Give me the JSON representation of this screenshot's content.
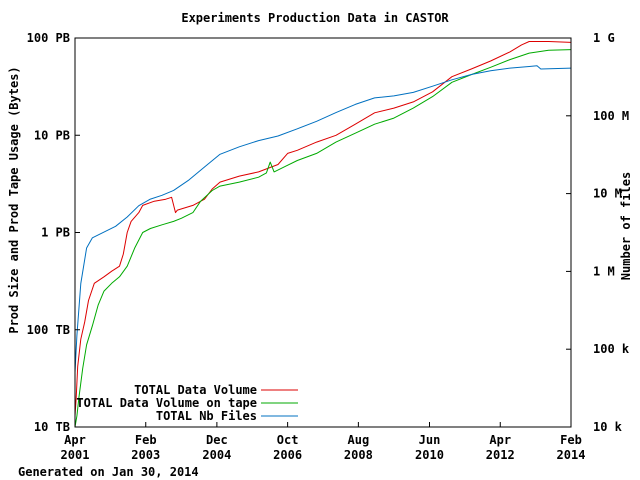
{
  "chart_data": {
    "type": "line",
    "title": "Experiments Production Data in CASTOR",
    "ylabel_left": "Prod Size and Prod Tape Usage (Bytes)",
    "ylabel_right": "Number of files",
    "footer": "Generated on Jan 30, 2014",
    "x_ticks": [
      {
        "x": 2001.25,
        "line1": "Apr",
        "line2": "2001"
      },
      {
        "x": 2003.08,
        "line1": "Feb",
        "line2": "2003"
      },
      {
        "x": 2004.92,
        "line1": "Dec",
        "line2": "2004"
      },
      {
        "x": 2006.75,
        "line1": "Oct",
        "line2": "2006"
      },
      {
        "x": 2008.58,
        "line1": "Aug",
        "line2": "2008"
      },
      {
        "x": 2010.42,
        "line1": "Jun",
        "line2": "2010"
      },
      {
        "x": 2012.25,
        "line1": "Apr",
        "line2": "2012"
      },
      {
        "x": 2014.08,
        "line1": "Feb",
        "line2": "2014"
      }
    ],
    "xlim": [
      2001.25,
      2014.08
    ],
    "left_axis": {
      "scale": "log",
      "unit": "TB",
      "ylim": [
        10,
        100000
      ],
      "ticks": [
        {
          "value": 10,
          "label": "10 TB"
        },
        {
          "value": 100,
          "label": "100 TB"
        },
        {
          "value": 1000,
          "label": "1 PB"
        },
        {
          "value": 10000,
          "label": "10 PB"
        },
        {
          "value": 100000,
          "label": "100 PB"
        }
      ]
    },
    "right_axis": {
      "scale": "log",
      "unit": "files",
      "ylim": [
        10000,
        1000000000
      ],
      "ticks": [
        {
          "value": 10000,
          "label": "10 k"
        },
        {
          "value": 100000,
          "label": "100 k"
        },
        {
          "value": 1000000,
          "label": "1 M"
        },
        {
          "value": 10000000,
          "label": "10 M"
        },
        {
          "value": 100000000,
          "label": "100 M"
        },
        {
          "value": 1000000000,
          "label": "1 G"
        }
      ]
    },
    "grid": false,
    "legend_position": "bottom-left",
    "series": [
      {
        "name": "TOTAL Data Volume",
        "color": "#dd0000",
        "axis": "left",
        "points": [
          [
            2001.25,
            13
          ],
          [
            2001.28,
            20
          ],
          [
            2001.32,
            42
          ],
          [
            2001.4,
            80
          ],
          [
            2001.5,
            120
          ],
          [
            2001.6,
            200
          ],
          [
            2001.75,
            300
          ],
          [
            2002.0,
            350
          ],
          [
            2002.2,
            400
          ],
          [
            2002.4,
            450
          ],
          [
            2002.5,
            600
          ],
          [
            2002.6,
            1000
          ],
          [
            2002.7,
            1300
          ],
          [
            2002.9,
            1600
          ],
          [
            2003.0,
            1900
          ],
          [
            2003.3,
            2100
          ],
          [
            2003.6,
            2200
          ],
          [
            2003.75,
            2300
          ],
          [
            2003.85,
            1600
          ],
          [
            2003.9,
            1700
          ],
          [
            2004.3,
            1900
          ],
          [
            2004.6,
            2200
          ],
          [
            2004.8,
            2800
          ],
          [
            2005.0,
            3300
          ],
          [
            2005.5,
            3800
          ],
          [
            2006.0,
            4200
          ],
          [
            2006.5,
            5000
          ],
          [
            2006.75,
            6500
          ],
          [
            2007.0,
            7000
          ],
          [
            2007.5,
            8500
          ],
          [
            2008.0,
            10000
          ],
          [
            2008.5,
            13000
          ],
          [
            2009.0,
            17000
          ],
          [
            2009.5,
            19000
          ],
          [
            2010.0,
            22000
          ],
          [
            2010.5,
            28000
          ],
          [
            2011.0,
            40000
          ],
          [
            2011.5,
            48000
          ],
          [
            2012.0,
            58000
          ],
          [
            2012.5,
            72000
          ],
          [
            2012.8,
            85000
          ],
          [
            2013.0,
            92000
          ],
          [
            2013.5,
            92000
          ],
          [
            2014.08,
            90000
          ]
        ]
      },
      {
        "name": "TOTAL Data Volume on tape",
        "color": "#00aa00",
        "axis": "left",
        "points": [
          [
            2001.25,
            10
          ],
          [
            2001.3,
            13
          ],
          [
            2001.35,
            20
          ],
          [
            2001.45,
            40
          ],
          [
            2001.55,
            70
          ],
          [
            2001.7,
            110
          ],
          [
            2001.85,
            180
          ],
          [
            2002.0,
            250
          ],
          [
            2002.2,
            300
          ],
          [
            2002.4,
            350
          ],
          [
            2002.6,
            450
          ],
          [
            2002.8,
            700
          ],
          [
            2003.0,
            1000
          ],
          [
            2003.2,
            1100
          ],
          [
            2003.5,
            1200
          ],
          [
            2003.8,
            1300
          ],
          [
            2004.0,
            1400
          ],
          [
            2004.3,
            1600
          ],
          [
            2004.5,
            2100
          ],
          [
            2004.8,
            2700
          ],
          [
            2005.0,
            3000
          ],
          [
            2005.5,
            3300
          ],
          [
            2006.0,
            3700
          ],
          [
            2006.2,
            4100
          ],
          [
            2006.3,
            5300
          ],
          [
            2006.4,
            4200
          ],
          [
            2006.7,
            4800
          ],
          [
            2007.0,
            5500
          ],
          [
            2007.5,
            6500
          ],
          [
            2008.0,
            8500
          ],
          [
            2008.5,
            10500
          ],
          [
            2009.0,
            13000
          ],
          [
            2009.5,
            15000
          ],
          [
            2010.0,
            19000
          ],
          [
            2010.5,
            25000
          ],
          [
            2011.0,
            35000
          ],
          [
            2011.5,
            42000
          ],
          [
            2012.0,
            50000
          ],
          [
            2012.5,
            60000
          ],
          [
            2013.0,
            70000
          ],
          [
            2013.5,
            75000
          ],
          [
            2014.08,
            76000
          ]
        ]
      },
      {
        "name": "TOTAL Nb Files",
        "color": "#0070c0",
        "axis": "right",
        "points": [
          [
            2001.25,
            50000
          ],
          [
            2001.3,
            150000
          ],
          [
            2001.4,
            700000
          ],
          [
            2001.55,
            2000000
          ],
          [
            2001.7,
            2700000
          ],
          [
            2002.0,
            3200000
          ],
          [
            2002.3,
            3800000
          ],
          [
            2002.6,
            5000000
          ],
          [
            2002.9,
            7000000
          ],
          [
            2003.2,
            8500000
          ],
          [
            2003.5,
            9500000
          ],
          [
            2003.8,
            11000000
          ],
          [
            2004.2,
            15000000
          ],
          [
            2004.6,
            22000000
          ],
          [
            2005.0,
            32000000
          ],
          [
            2005.5,
            40000000
          ],
          [
            2006.0,
            48000000
          ],
          [
            2006.5,
            55000000
          ],
          [
            2007.0,
            68000000
          ],
          [
            2007.5,
            85000000
          ],
          [
            2008.0,
            110000000
          ],
          [
            2008.5,
            140000000
          ],
          [
            2009.0,
            170000000
          ],
          [
            2009.5,
            180000000
          ],
          [
            2010.0,
            200000000
          ],
          [
            2010.5,
            240000000
          ],
          [
            2011.0,
            290000000
          ],
          [
            2011.5,
            340000000
          ],
          [
            2012.0,
            380000000
          ],
          [
            2012.5,
            410000000
          ],
          [
            2013.0,
            430000000
          ],
          [
            2013.2,
            440000000
          ],
          [
            2013.3,
            400000000
          ],
          [
            2014.08,
            410000000
          ]
        ]
      }
    ]
  }
}
